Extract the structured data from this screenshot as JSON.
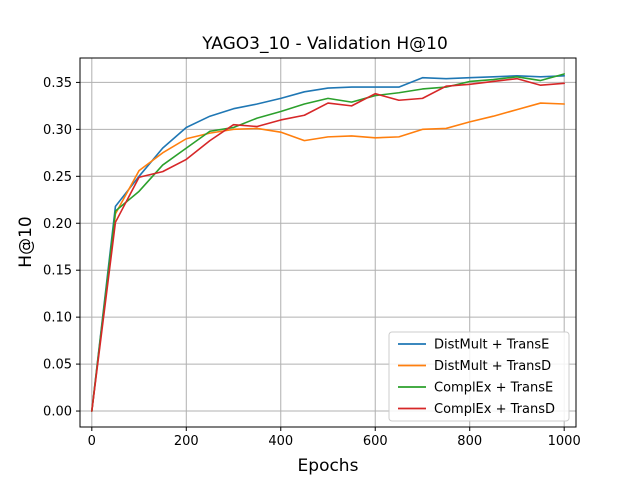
{
  "chart_data": {
    "type": "line",
    "title": "YAGO3_10 - Validation H@10",
    "xlabel": "Epochs",
    "ylabel": "H@10",
    "xlim": [
      -25,
      1025
    ],
    "ylim": [
      -0.017,
      0.376
    ],
    "xticks": [
      0,
      200,
      400,
      600,
      800,
      1000
    ],
    "xtick_labels": [
      "0",
      "200",
      "400",
      "600",
      "800",
      "1000"
    ],
    "yticks": [
      0.0,
      0.05,
      0.1,
      0.15,
      0.2,
      0.25,
      0.3,
      0.35
    ],
    "ytick_labels": [
      "0.00",
      "0.05",
      "0.10",
      "0.15",
      "0.20",
      "0.25",
      "0.30",
      "0.35"
    ],
    "grid": true,
    "legend_position": "bottom-right",
    "x": [
      0,
      50,
      100,
      150,
      200,
      250,
      300,
      350,
      400,
      450,
      500,
      550,
      600,
      650,
      700,
      750,
      800,
      850,
      900,
      950,
      1000
    ],
    "series": [
      {
        "name": "DistMult + TransE",
        "color": "#1f77b4",
        "values": [
          0.0,
          0.218,
          0.25,
          0.28,
          0.302,
          0.314,
          0.322,
          0.327,
          0.333,
          0.34,
          0.344,
          0.345,
          0.345,
          0.345,
          0.355,
          0.354,
          0.355,
          0.356,
          0.357,
          0.356,
          0.357
        ]
      },
      {
        "name": "DistMult + TransD",
        "color": "#ff7f0e",
        "values": [
          0.0,
          0.21,
          0.256,
          0.275,
          0.29,
          0.296,
          0.3,
          0.301,
          0.297,
          0.288,
          0.292,
          0.293,
          0.291,
          0.292,
          0.3,
          0.301,
          0.308,
          0.314,
          0.321,
          0.328,
          0.327
        ]
      },
      {
        "name": "ComplEx + TransE",
        "color": "#2ca02c",
        "values": [
          0.0,
          0.213,
          0.234,
          0.262,
          0.28,
          0.298,
          0.302,
          0.312,
          0.319,
          0.327,
          0.333,
          0.329,
          0.336,
          0.339,
          0.343,
          0.345,
          0.351,
          0.353,
          0.356,
          0.352,
          0.359
        ]
      },
      {
        "name": "ComplEx + TransD",
        "color": "#d62728",
        "values": [
          0.0,
          0.201,
          0.249,
          0.255,
          0.268,
          0.288,
          0.305,
          0.303,
          0.31,
          0.315,
          0.328,
          0.325,
          0.338,
          0.331,
          0.333,
          0.346,
          0.348,
          0.351,
          0.354,
          0.347,
          0.349
        ]
      }
    ]
  }
}
